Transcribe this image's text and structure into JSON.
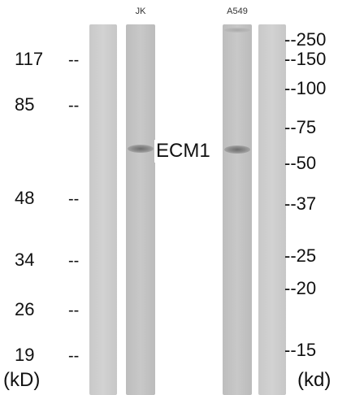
{
  "lanes": [
    {
      "label": "",
      "type": "blank"
    },
    {
      "label": "JK",
      "type": "sample"
    },
    {
      "label": "A549",
      "type": "sample"
    },
    {
      "label": "",
      "type": "blank"
    }
  ],
  "target_label": "ECM1",
  "left_markers": [
    "117",
    "85",
    "48",
    "34",
    "26",
    "19"
  ],
  "left_dash": "--",
  "left_unit": "(kD)",
  "right_markers": [
    "--250",
    "--150",
    "--100",
    "--75",
    "--50",
    "--37",
    "--25",
    "--20",
    "--15"
  ],
  "right_unit": "(kd)"
}
